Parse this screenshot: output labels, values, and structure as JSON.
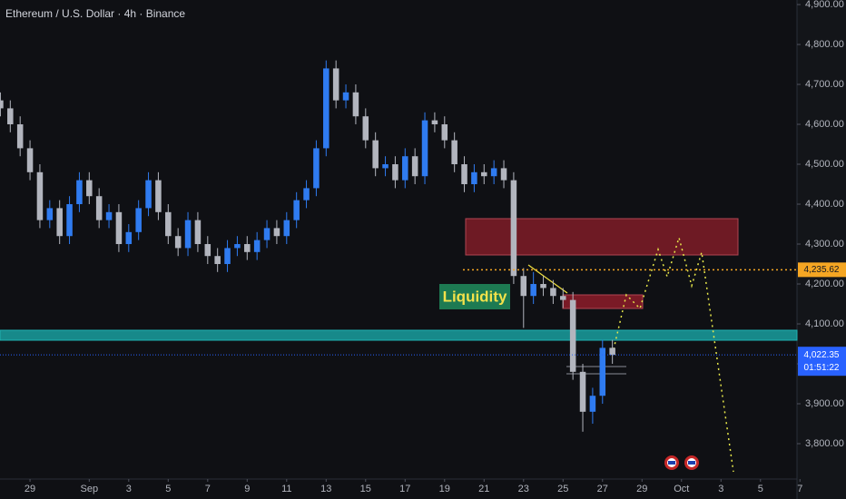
{
  "chart_data": {
    "type": "candlestick",
    "title": "Ethereum / U.S. Dollar · 4h · Binance",
    "up_color": "#2f7bf0",
    "down_color": "#b2b5be",
    "x": [
      -1.5,
      -1,
      -0.5,
      0,
      0.5,
      1,
      1.5,
      2,
      2.5,
      3,
      3.5,
      4,
      4.5,
      5,
      5.5,
      6,
      6.5,
      7,
      7.5,
      8,
      8.5,
      9,
      9.5,
      10,
      10.5,
      11,
      11.5,
      12,
      12.5,
      13,
      13.5,
      14,
      14.5,
      15,
      15.5,
      16,
      16.5,
      17,
      17.5,
      18,
      18.5,
      19,
      19.5,
      20,
      20.5,
      21,
      21.5,
      22,
      22.5,
      23,
      23.5,
      24,
      24.5,
      25,
      25.5,
      26,
      26.5,
      27,
      27.5,
      28,
      28.5,
      29,
      29.5
    ],
    "open": [
      4660,
      4640,
      4600,
      4540,
      4480,
      4360,
      4390,
      4320,
      4400,
      4460,
      4420,
      4360,
      4380,
      4300,
      4330,
      4390,
      4460,
      4380,
      4320,
      4290,
      4360,
      4300,
      4270,
      4250,
      4290,
      4300,
      4280,
      4310,
      4340,
      4320,
      4360,
      4410,
      4440,
      4540,
      4740,
      4660,
      4680,
      4620,
      4560,
      4490,
      4500,
      4460,
      4520,
      4470,
      4610,
      4600,
      4560,
      4500,
      4450,
      4480,
      4470,
      4490,
      4460,
      4220,
      4170,
      4200,
      4190,
      4170,
      4160,
      3980,
      3880,
      3920,
      4040
    ],
    "high": [
      4680,
      4660,
      4620,
      4560,
      4500,
      4410,
      4410,
      4420,
      4480,
      4480,
      4440,
      4400,
      4400,
      4350,
      4410,
      4480,
      4480,
      4400,
      4340,
      4380,
      4380,
      4320,
      4290,
      4310,
      4320,
      4320,
      4330,
      4360,
      4360,
      4380,
      4430,
      4460,
      4560,
      4760,
      4760,
      4700,
      4700,
      4640,
      4580,
      4520,
      4520,
      4540,
      4540,
      4630,
      4630,
      4620,
      4580,
      4520,
      4500,
      4500,
      4510,
      4510,
      4480,
      4240,
      4230,
      4220,
      4210,
      4190,
      4180,
      4000,
      3940,
      4060,
      4060
    ],
    "low": [
      4620,
      4580,
      4520,
      4460,
      4340,
      4340,
      4300,
      4300,
      4380,
      4400,
      4340,
      4340,
      4280,
      4280,
      4310,
      4370,
      4360,
      4300,
      4270,
      4270,
      4280,
      4250,
      4230,
      4230,
      4270,
      4260,
      4260,
      4290,
      4300,
      4300,
      4340,
      4390,
      4420,
      4520,
      4640,
      4640,
      4600,
      4540,
      4470,
      4470,
      4440,
      4440,
      4450,
      4450,
      4580,
      4540,
      4480,
      4430,
      4430,
      4450,
      4450,
      4440,
      4200,
      4090,
      4150,
      4170,
      4150,
      4140,
      3960,
      3830,
      3850,
      3900,
      4000
    ],
    "close": [
      4640,
      4600,
      4540,
      4480,
      4360,
      4390,
      4320,
      4400,
      4460,
      4420,
      4360,
      4380,
      4300,
      4330,
      4390,
      4460,
      4380,
      4320,
      4290,
      4360,
      4300,
      4270,
      4250,
      4290,
      4300,
      4280,
      4310,
      4340,
      4320,
      4360,
      4410,
      4440,
      4540,
      4740,
      4660,
      4680,
      4620,
      4560,
      4490,
      4500,
      4460,
      4520,
      4470,
      4610,
      4600,
      4560,
      4500,
      4450,
      4480,
      4470,
      4490,
      4460,
      4220,
      4170,
      4200,
      4190,
      4170,
      4160,
      3980,
      3880,
      3920,
      4040,
      4022.35
    ],
    "xlim": [
      -1.52,
      38.85
    ],
    "xticks": [
      {
        "value": 0,
        "label": "29"
      },
      {
        "value": 3,
        "label": "Sep"
      },
      {
        "value": 5,
        "label": "3"
      },
      {
        "value": 7,
        "label": "5"
      },
      {
        "value": 9,
        "label": "7"
      },
      {
        "value": 11,
        "label": "9"
      },
      {
        "value": 13,
        "label": "11"
      },
      {
        "value": 15,
        "label": "13"
      },
      {
        "value": 17,
        "label": "15"
      },
      {
        "value": 19,
        "label": "17"
      },
      {
        "value": 21,
        "label": "19"
      },
      {
        "value": 23,
        "label": "21"
      },
      {
        "value": 25,
        "label": "23"
      },
      {
        "value": 27,
        "label": "25"
      },
      {
        "value": 29,
        "label": "27"
      },
      {
        "value": 31,
        "label": "29"
      },
      {
        "value": 33,
        "label": "Oct"
      },
      {
        "value": 35,
        "label": "3"
      },
      {
        "value": 37,
        "label": "5"
      },
      {
        "value": 39,
        "label": "7"
      }
    ],
    "ylim": [
      3711.4,
      4911.4
    ],
    "yticks": [
      {
        "value": 3800,
        "label": "3,800.00"
      },
      {
        "value": 3900,
        "label": "3,900.00"
      },
      {
        "value": 4000,
        "label": "4,000.00"
      },
      {
        "value": 4100,
        "label": "4,100.00"
      },
      {
        "value": 4200,
        "label": "4,200.00"
      },
      {
        "value": 4300,
        "label": "4,300.00"
      },
      {
        "value": 4400,
        "label": "4,400.00"
      },
      {
        "value": 4500,
        "label": "4,500.00"
      },
      {
        "value": 4600,
        "label": "4,600.00"
      },
      {
        "value": 4700,
        "label": "4,700.00"
      },
      {
        "value": 4800,
        "label": "4,800.00"
      },
      {
        "value": 4900,
        "label": "4,900.00"
      }
    ],
    "grid": false,
    "price_line": {
      "value": 4235.62,
      "label": "4,235.62",
      "color": "#f5a623"
    },
    "last_price": {
      "value": 4022.35,
      "label": "4,022.35",
      "countdown": "01:51:22",
      "color": "#2962ff"
    },
    "annotation": "Liquidity"
  }
}
